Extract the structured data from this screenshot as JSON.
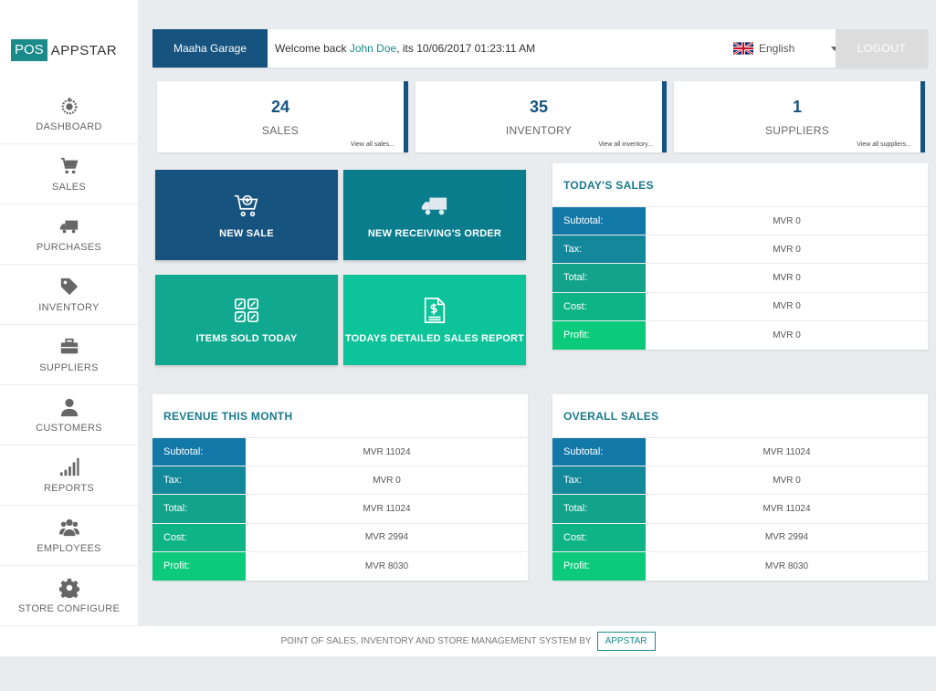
{
  "logo": {
    "pos": "POS",
    "app": "APPSTAR"
  },
  "sidebar": {
    "items": [
      {
        "label": "DASHBOARD"
      },
      {
        "label": "SALES"
      },
      {
        "label": "PURCHASES"
      },
      {
        "label": "INVENTORY"
      },
      {
        "label": "SUPPLIERS"
      },
      {
        "label": "CUSTOMERS"
      },
      {
        "label": "REPORTS"
      },
      {
        "label": "EMPLOYEES"
      },
      {
        "label": "STORE CONFIGURE"
      }
    ]
  },
  "header": {
    "store": "Maaha Garage",
    "welcome_prefix": "Welcome back ",
    "user": "John Doe",
    "welcome_suffix": ", its  10/06/2017 01:23:11 AM",
    "language": "English",
    "logout": "LOGOUT"
  },
  "stats": [
    {
      "value": "24",
      "label": "SALES",
      "link": "View all sales..."
    },
    {
      "value": "35",
      "label": "INVENTORY",
      "link": "View all inventory..."
    },
    {
      "value": "1",
      "label": "SUPPLIERS",
      "link": "View all suppliers..."
    }
  ],
  "tiles": [
    {
      "label": "NEW SALE",
      "color": "#16537e"
    },
    {
      "label": "NEW RECEIVING'S ORDER",
      "color": "#0a7d8d"
    },
    {
      "label": "ITEMS SOLD TODAY",
      "color": "#10a88e"
    },
    {
      "label": "TODAYS DETAILED SALES REPORT",
      "color": "#0cc39a"
    }
  ],
  "todays_sales": {
    "title": "TODAY'S SALES",
    "rows": [
      {
        "k": "Subtotal:",
        "v": "MVR 0"
      },
      {
        "k": "Tax:",
        "v": "MVR 0"
      },
      {
        "k": "Total:",
        "v": "MVR 0"
      },
      {
        "k": "Cost:",
        "v": "MVR 0"
      },
      {
        "k": "Profit:",
        "v": "MVR 0"
      }
    ]
  },
  "revenue_month": {
    "title": "REVENUE THIS MONTH",
    "rows": [
      {
        "k": "Subtotal:",
        "v": "MVR 11024"
      },
      {
        "k": "Tax:",
        "v": "MVR 0"
      },
      {
        "k": "Total:",
        "v": "MVR 11024"
      },
      {
        "k": "Cost:",
        "v": "MVR 2994"
      },
      {
        "k": "Profit:",
        "v": "MVR 8030"
      }
    ]
  },
  "overall_sales": {
    "title": "OVERALL SALES",
    "rows": [
      {
        "k": "Subtotal:",
        "v": "MVR 11024"
      },
      {
        "k": "Tax:",
        "v": "MVR 0"
      },
      {
        "k": "Total:",
        "v": "MVR 11024"
      },
      {
        "k": "Cost:",
        "v": "MVR 2994"
      },
      {
        "k": "Profit:",
        "v": "MVR 8030"
      }
    ]
  },
  "footer": {
    "text": "POINT OF SALES, INVENTORY AND STORE MANAGEMENT SYSTEM BY",
    "badge": "APPSTAR"
  }
}
